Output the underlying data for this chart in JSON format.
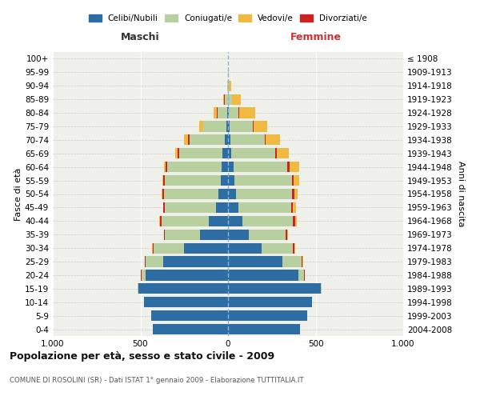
{
  "age_groups": [
    "0-4",
    "5-9",
    "10-14",
    "15-19",
    "20-24",
    "25-29",
    "30-34",
    "35-39",
    "40-44",
    "45-49",
    "50-54",
    "55-59",
    "60-64",
    "65-69",
    "70-74",
    "75-79",
    "80-84",
    "85-89",
    "90-94",
    "95-99",
    "100+"
  ],
  "birth_years": [
    "2004-2008",
    "1999-2003",
    "1994-1998",
    "1989-1993",
    "1984-1988",
    "1979-1983",
    "1974-1978",
    "1969-1973",
    "1964-1968",
    "1959-1963",
    "1954-1958",
    "1949-1953",
    "1944-1948",
    "1939-1943",
    "1934-1938",
    "1929-1933",
    "1924-1928",
    "1919-1923",
    "1914-1918",
    "1909-1913",
    "≤ 1908"
  ],
  "maschi": {
    "celibi": [
      430,
      440,
      480,
      510,
      470,
      370,
      250,
      160,
      110,
      70,
      55,
      40,
      35,
      30,
      20,
      10,
      5,
      2,
      0,
      0,
      0
    ],
    "coniugati": [
      0,
      0,
      0,
      5,
      25,
      100,
      175,
      200,
      270,
      290,
      310,
      320,
      310,
      250,
      200,
      130,
      55,
      18,
      3,
      1,
      0
    ],
    "vedovi": [
      0,
      0,
      0,
      0,
      0,
      2,
      2,
      2,
      3,
      3,
      5,
      5,
      10,
      15,
      20,
      20,
      20,
      5,
      2,
      0,
      0
    ],
    "divorziati": [
      0,
      0,
      0,
      0,
      2,
      3,
      5,
      5,
      8,
      8,
      10,
      10,
      10,
      8,
      10,
      3,
      2,
      2,
      0,
      0,
      0
    ]
  },
  "femmine": {
    "nubili": [
      410,
      450,
      480,
      530,
      400,
      310,
      190,
      120,
      80,
      60,
      45,
      35,
      30,
      20,
      15,
      10,
      5,
      2,
      0,
      0,
      0
    ],
    "coniugate": [
      0,
      0,
      0,
      5,
      35,
      110,
      180,
      210,
      290,
      300,
      320,
      330,
      310,
      250,
      195,
      130,
      55,
      20,
      5,
      2,
      0
    ],
    "vedove": [
      0,
      0,
      0,
      0,
      2,
      3,
      5,
      5,
      10,
      15,
      20,
      30,
      55,
      70,
      80,
      80,
      90,
      50,
      15,
      2,
      0
    ],
    "divorziate": [
      0,
      0,
      0,
      0,
      2,
      5,
      7,
      8,
      12,
      12,
      12,
      10,
      10,
      8,
      5,
      5,
      5,
      2,
      0,
      0,
      0
    ]
  },
  "colors": {
    "celibi": "#2e6da4",
    "coniugati": "#b8cfa0",
    "vedovi": "#f0b942",
    "divorziati": "#cc2222"
  },
  "legend_labels": [
    "Celibi/Nubili",
    "Coniugati/e",
    "Vedovi/e",
    "Divorziati/e"
  ],
  "title": "Popolazione per età, sesso e stato civile - 2009",
  "subtitle": "COMUNE DI ROSOLINI (SR) - Dati ISTAT 1° gennaio 2009 - Elaborazione TUTTITALIA.IT",
  "xlabel_left": "Maschi",
  "xlabel_right": "Femmine",
  "ylabel_left": "Fasce di età",
  "ylabel_right": "Anni di nascita",
  "xlim": 1000,
  "bg_color": "#ffffff",
  "plot_bg_color": "#f0f0eb"
}
